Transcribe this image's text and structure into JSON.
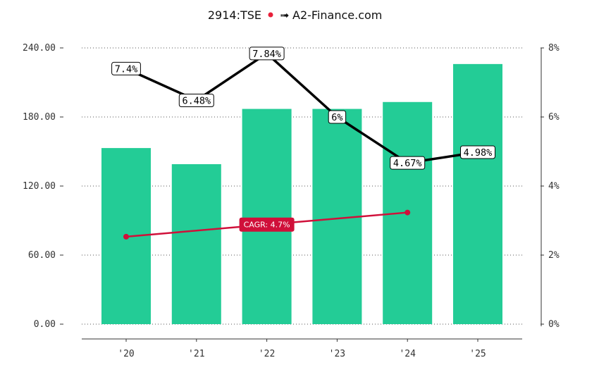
{
  "chart_data": {
    "type": "bar",
    "title_ticker": "2914:TSE",
    "title_source": "A2-Finance.com",
    "categories": [
      "'20",
      "'21",
      "'22",
      "'23",
      "'24",
      "'25"
    ],
    "bars": {
      "values": [
        153,
        139,
        187,
        187,
        193,
        226
      ],
      "ylim": [
        0,
        240
      ],
      "ticks": [
        "0.00",
        "60.00",
        "120.00",
        "180.00",
        "240.00"
      ],
      "tick_values": [
        0,
        60,
        120,
        180,
        240
      ]
    },
    "yield_line": {
      "values": [
        7.4,
        6.48,
        7.84,
        6.0,
        4.67,
        4.98
      ],
      "labels": [
        "7.4%",
        "6.48%",
        "7.84%",
        "6%",
        "4.67%",
        "4.98%"
      ],
      "ylim": [
        0,
        8
      ],
      "ticks": [
        "0%",
        "2%",
        "4%",
        "6%",
        "8%"
      ],
      "tick_values": [
        0,
        2,
        4,
        6,
        8
      ]
    },
    "cagr": {
      "label": "CAGR: 4.7%",
      "start_index": 0,
      "end_index": 4,
      "start_value": 76,
      "end_value": 97
    },
    "grid": true,
    "colors": {
      "bar": "#23cc96",
      "line": "#000000",
      "cagr": "#d0103a",
      "grid": "#555555"
    }
  }
}
